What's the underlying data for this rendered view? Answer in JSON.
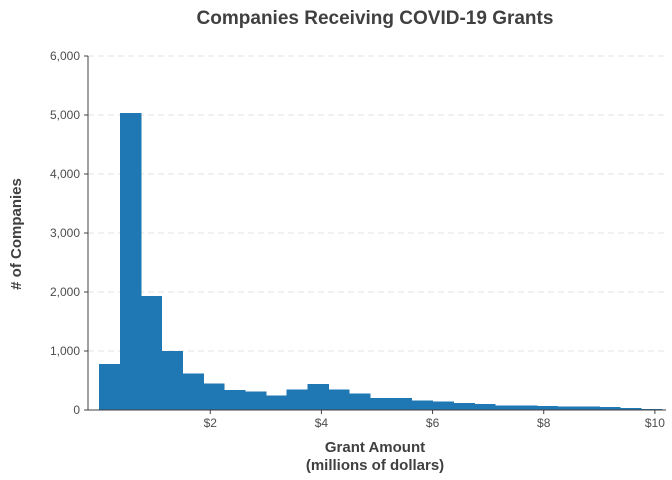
{
  "chart_data": {
    "type": "bar",
    "title": "Companies Receiving COVID-19 Grants",
    "xlabel": [
      "Grant Amount",
      "(millions of dollars)"
    ],
    "ylabel": "# of Companies",
    "xlim": [
      -0.2,
      10.2
    ],
    "ylim": [
      0,
      6000
    ],
    "bin_width": 0.375,
    "bin_start": 0,
    "y_ticks": [
      {
        "value": 0,
        "label": "0"
      },
      {
        "value": 1000,
        "label": "1,000"
      },
      {
        "value": 2000,
        "label": "2,000"
      },
      {
        "value": 3000,
        "label": "3,000"
      },
      {
        "value": 4000,
        "label": "4,000"
      },
      {
        "value": 5000,
        "label": "5,000"
      },
      {
        "value": 6000,
        "label": "6,000"
      }
    ],
    "x_ticks": [
      {
        "value": 2,
        "label": "$2"
      },
      {
        "value": 4,
        "label": "$4"
      },
      {
        "value": 6,
        "label": "$6"
      },
      {
        "value": 8,
        "label": "$8"
      },
      {
        "value": 10,
        "label": "$10"
      }
    ],
    "values": [
      780,
      5030,
      1930,
      1000,
      620,
      450,
      340,
      310,
      250,
      350,
      440,
      350,
      280,
      200,
      200,
      160,
      140,
      120,
      100,
      80,
      80,
      70,
      60,
      60,
      50,
      30,
      20
    ],
    "grid": true,
    "bar_color": "#1f77b4"
  }
}
